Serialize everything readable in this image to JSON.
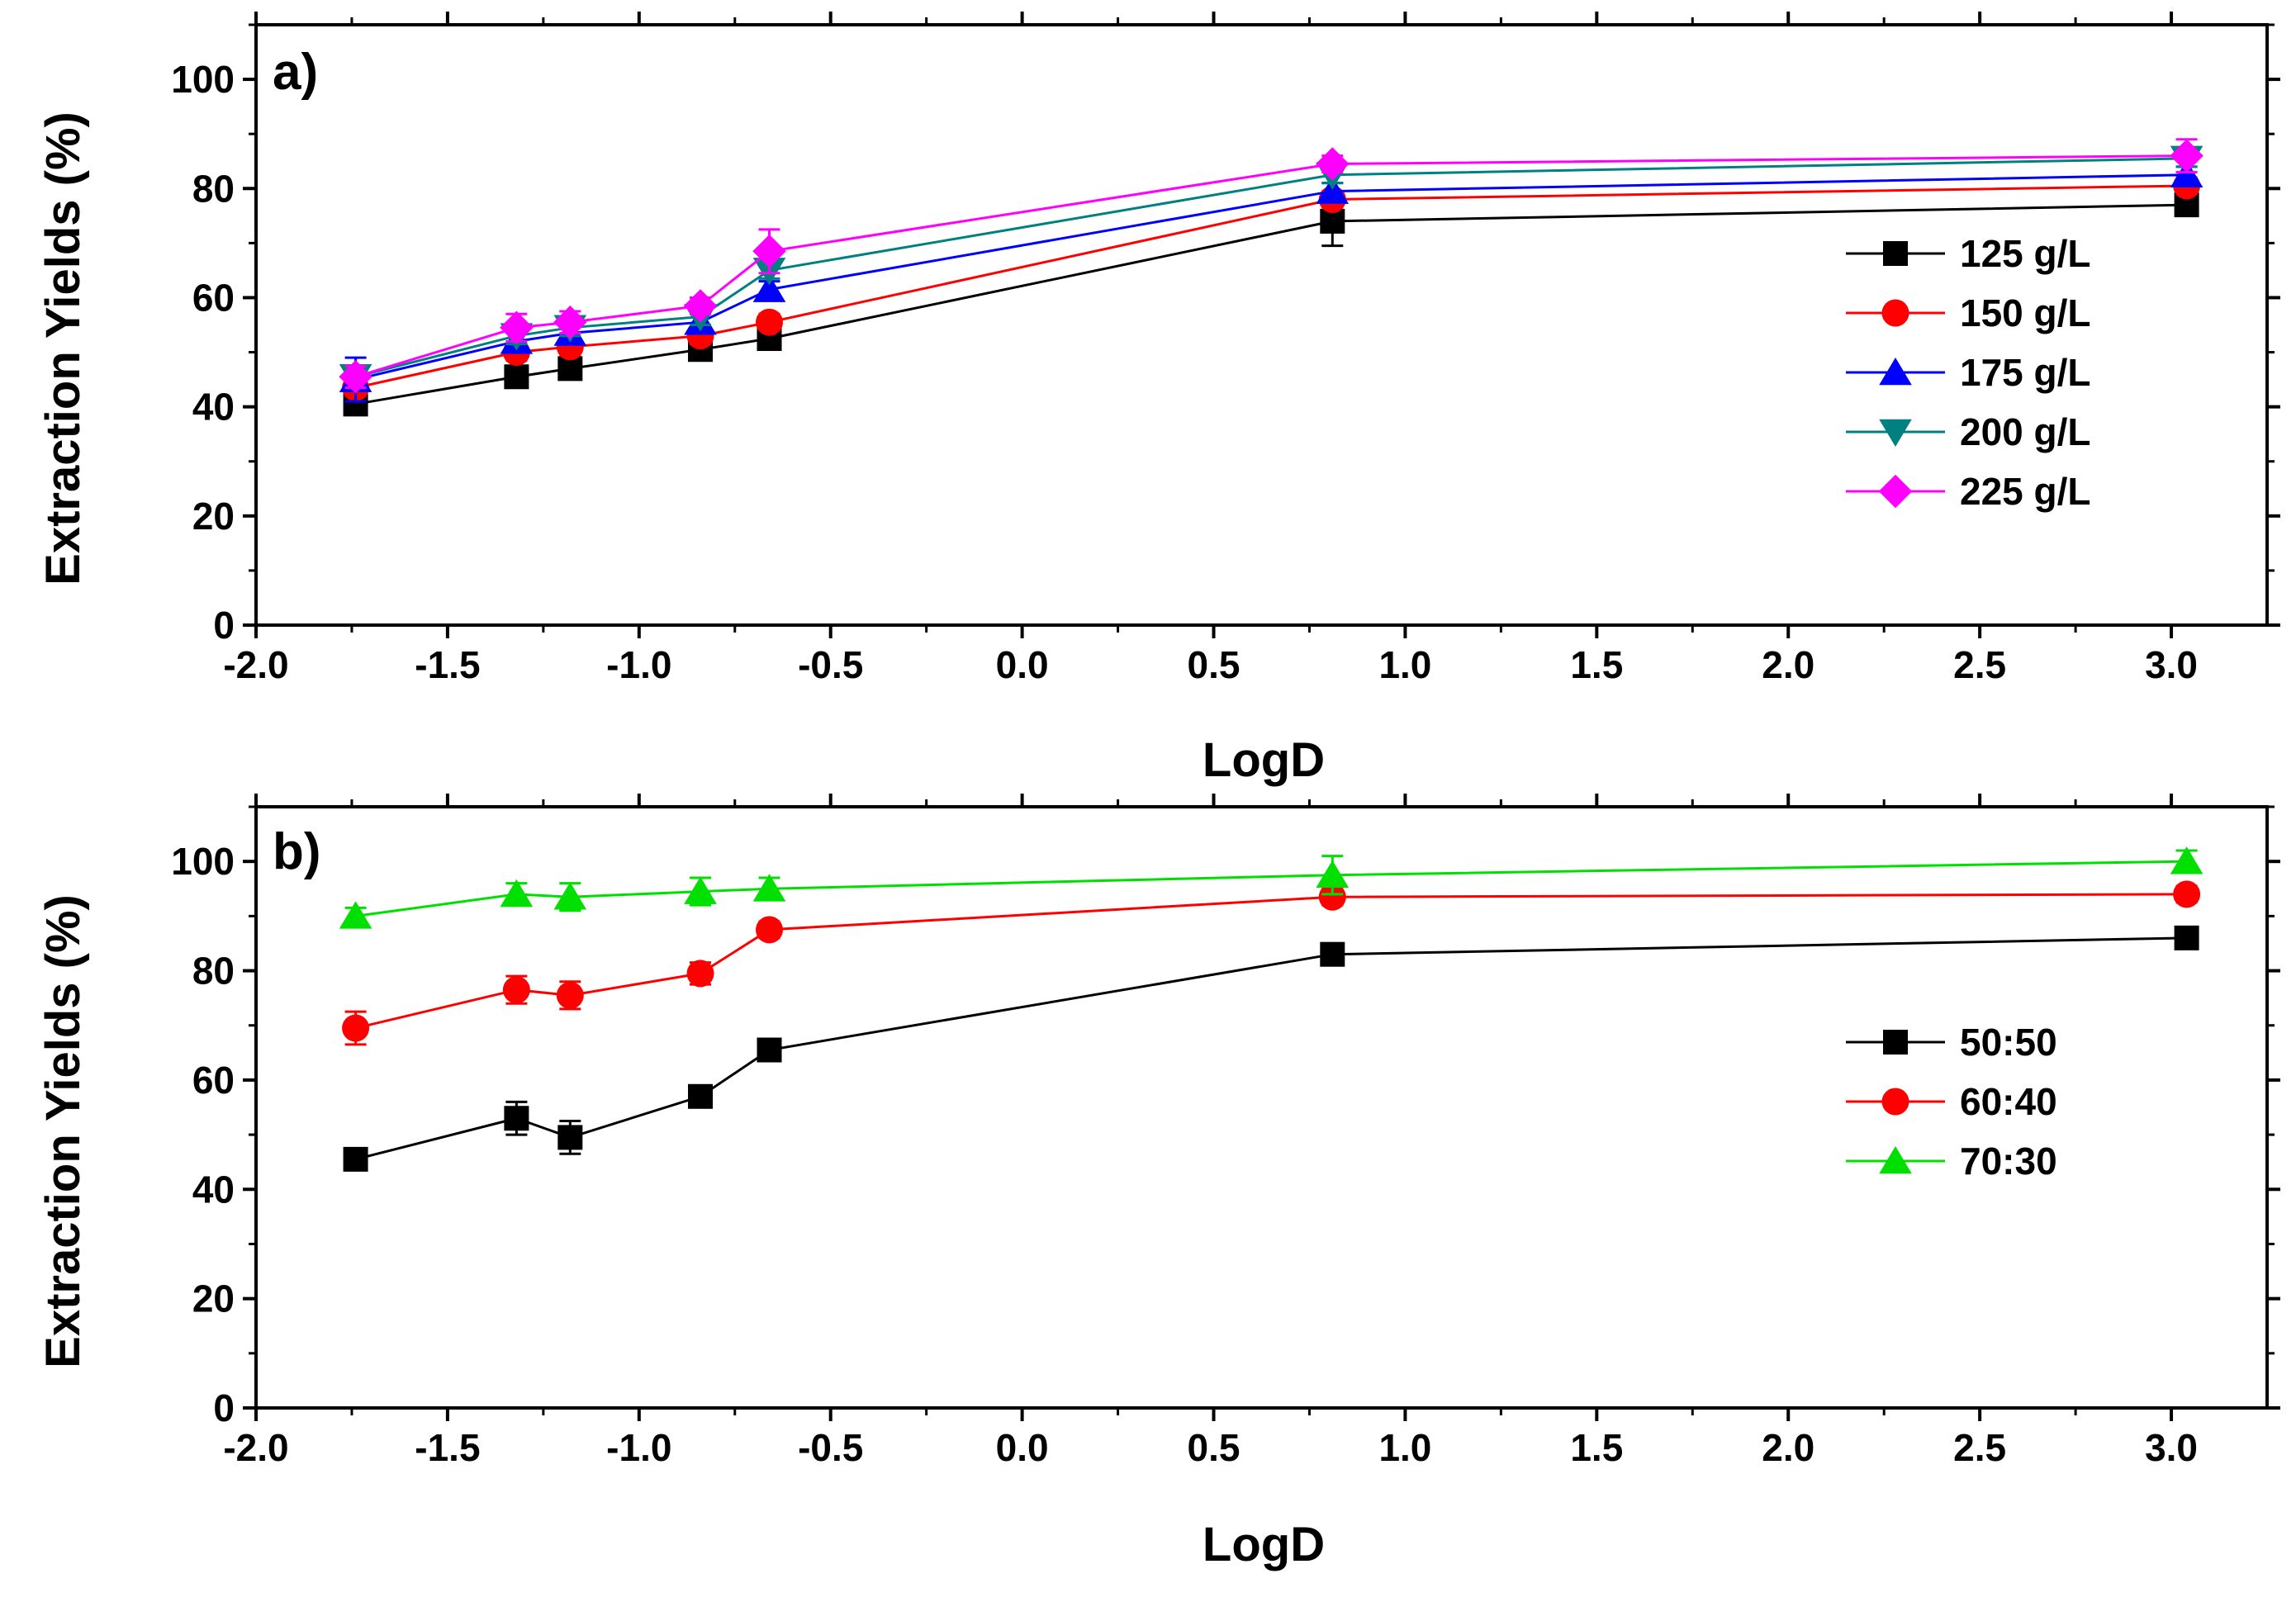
{
  "chart_data": [
    {
      "type": "line",
      "panel_label": "a)",
      "title": "",
      "xlabel": "LogD",
      "ylabel": "Extraction Yields (%)",
      "xlim": [
        -2.0,
        3.25
      ],
      "ylim": [
        0,
        110
      ],
      "x_ticks": [
        "-2.0",
        "-1.5",
        "-1.0",
        "-0.5",
        "0.0",
        "0.5",
        "1.0",
        "1.5",
        "2.0",
        "2.5",
        "3.0"
      ],
      "y_ticks": [
        "0",
        "20",
        "40",
        "60",
        "80",
        "100"
      ],
      "grid": false,
      "legend_position": "right",
      "x": [
        -1.74,
        -1.32,
        -1.18,
        -0.84,
        -0.66,
        0.81,
        3.04
      ],
      "series": [
        {
          "name": "125 g/L",
          "color": "#000000",
          "marker": "square",
          "values": [
            40.5,
            45.5,
            47.0,
            50.5,
            52.5,
            74.0,
            77.0
          ],
          "errors": [
            1.5,
            1.5,
            1.5,
            1.5,
            1.5,
            4.5,
            1.5
          ]
        },
        {
          "name": "150 g/L",
          "color": "#ff0000",
          "marker": "circle",
          "values": [
            43.5,
            50.0,
            51.0,
            53.0,
            55.5,
            78.0,
            80.5
          ],
          "errors": [
            1.5,
            1.5,
            1.5,
            1.5,
            1.5,
            1.5,
            1.5
          ]
        },
        {
          "name": "175 g/L",
          "color": "#0000ff",
          "marker": "triangle-up",
          "values": [
            45.0,
            52.0,
            53.5,
            55.5,
            61.5,
            79.5,
            82.5
          ],
          "errors": [
            4.0,
            1.5,
            1.5,
            1.5,
            1.5,
            1.5,
            1.5
          ]
        },
        {
          "name": "200 g/L",
          "color": "#008080",
          "marker": "triangle-down",
          "values": [
            45.5,
            53.0,
            54.5,
            56.5,
            65.0,
            82.5,
            85.5
          ],
          "errors": [
            2.0,
            1.5,
            1.5,
            1.5,
            1.5,
            1.5,
            1.5
          ]
        },
        {
          "name": "225 g/L",
          "color": "#ff00ff",
          "marker": "diamond",
          "values": [
            45.5,
            54.5,
            55.5,
            58.5,
            68.5,
            84.5,
            86.0
          ],
          "errors": [
            2.0,
            2.5,
            2.0,
            1.5,
            4.0,
            1.5,
            3.0
          ]
        }
      ]
    },
    {
      "type": "line",
      "panel_label": "b)",
      "title": "",
      "xlabel": "LogD",
      "ylabel": "Extraction Yields (%)",
      "xlim": [
        -2.0,
        3.25
      ],
      "ylim": [
        0,
        110
      ],
      "x_ticks": [
        "-2.0",
        "-1.5",
        "-1.0",
        "-0.5",
        "0.0",
        "0.5",
        "1.0",
        "1.5",
        "2.0",
        "2.5",
        "3.0"
      ],
      "y_ticks": [
        "0",
        "20",
        "40",
        "60",
        "80",
        "100"
      ],
      "grid": false,
      "legend_position": "right",
      "x": [
        -1.74,
        -1.32,
        -1.18,
        -0.84,
        -0.66,
        0.81,
        3.04
      ],
      "series": [
        {
          "name": "50:50",
          "color": "#000000",
          "marker": "square",
          "values": [
            45.5,
            53.0,
            49.5,
            57.0,
            65.5,
            83.0,
            86.0
          ],
          "errors": [
            1.5,
            3.0,
            3.0,
            1.5,
            1.5,
            1.5,
            1.5
          ]
        },
        {
          "name": "60:40",
          "color": "#ff0000",
          "marker": "circle",
          "values": [
            69.5,
            76.5,
            75.5,
            79.5,
            87.5,
            93.5,
            94.0
          ],
          "errors": [
            3.0,
            2.5,
            2.5,
            2.0,
            1.5,
            1.5,
            1.5
          ]
        },
        {
          "name": "70:30",
          "color": "#00e000",
          "marker": "triangle-up",
          "values": [
            90.0,
            94.0,
            93.5,
            94.5,
            95.0,
            97.5,
            100.0
          ],
          "errors": [
            1.5,
            2.0,
            2.5,
            2.5,
            2.0,
            3.5,
            2.0
          ]
        }
      ]
    }
  ]
}
